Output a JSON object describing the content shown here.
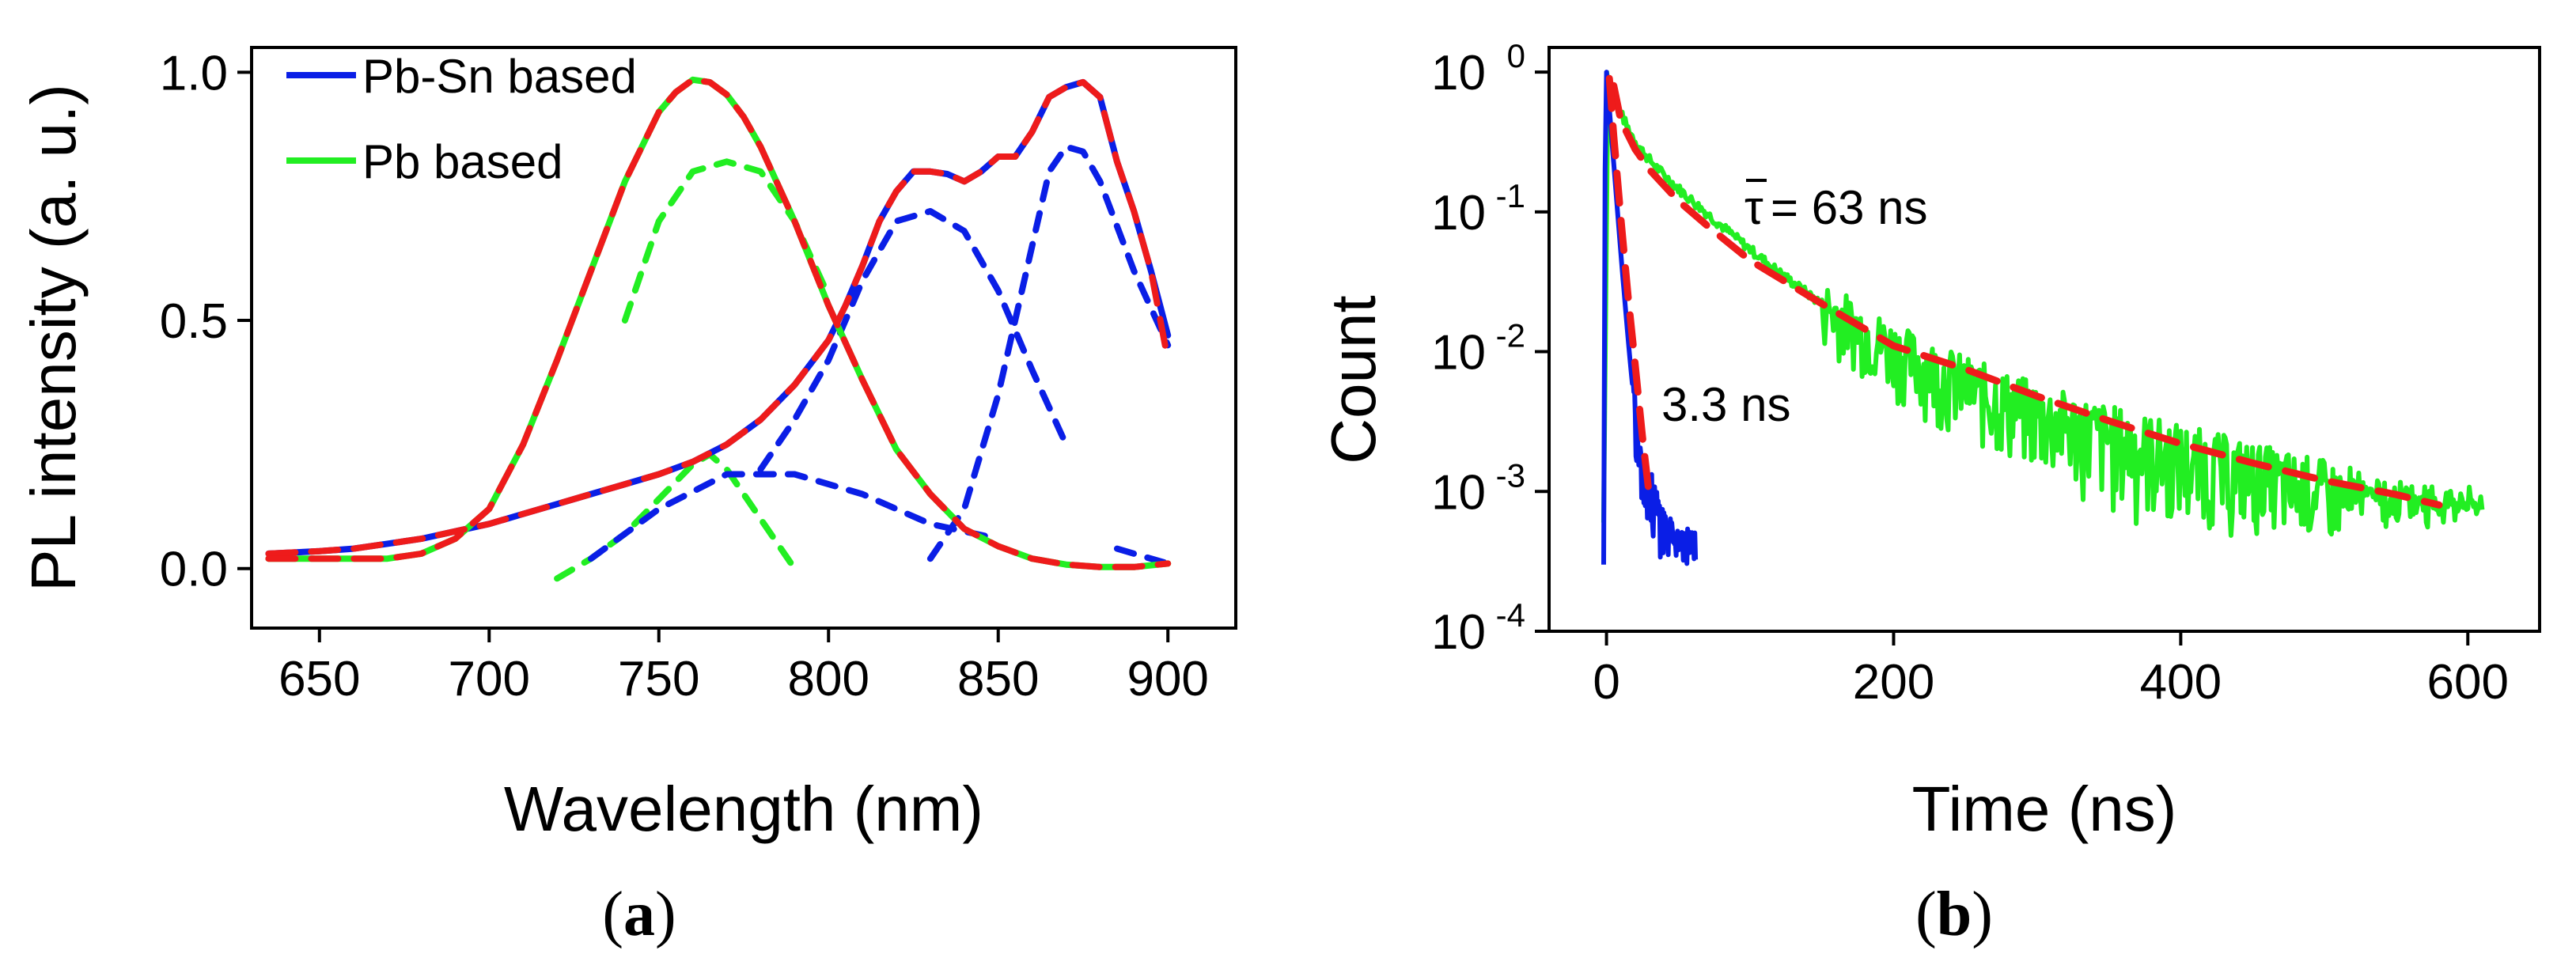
{
  "colors": {
    "pb_sn": "#0a1ee6",
    "pb": "#22ee22",
    "fit": "#ee1b1b",
    "axis": "#000000"
  },
  "chart_data": [
    {
      "type": "line",
      "panel_label": "a",
      "xlabel": "Wavelength (nm)",
      "ylabel": "PL intensity (a. u.)",
      "xlim": [
        630,
        920
      ],
      "ylim": [
        -0.12,
        1.05
      ],
      "xticks": [
        650,
        700,
        750,
        800,
        850,
        900
      ],
      "xtick_labels": [
        "650",
        "700",
        "750",
        "800",
        "850",
        "900"
      ],
      "yticks": [
        0.0,
        0.5,
        1.0
      ],
      "ytick_labels": [
        "0.0",
        "0.5",
        "1.0"
      ],
      "legend": [
        {
          "label": "Pb-Sn based",
          "color": "#0a1ee6"
        },
        {
          "label": "Pb based",
          "color": "#22ee22"
        }
      ],
      "series": [
        {
          "name": "Pb-Sn based",
          "style": "solid",
          "x": [
            635,
            650,
            660,
            670,
            680,
            690,
            700,
            710,
            720,
            730,
            740,
            750,
            760,
            770,
            780,
            790,
            800,
            805,
            810,
            815,
            820,
            825,
            830,
            835,
            840,
            845,
            850,
            855,
            860,
            865,
            870,
            875,
            880,
            885,
            890,
            895,
            900
          ],
          "y": [
            0.03,
            0.035,
            0.04,
            0.05,
            0.06,
            0.075,
            0.09,
            0.11,
            0.13,
            0.15,
            0.17,
            0.19,
            0.215,
            0.25,
            0.3,
            0.37,
            0.46,
            0.53,
            0.61,
            0.7,
            0.76,
            0.8,
            0.8,
            0.795,
            0.78,
            0.8,
            0.83,
            0.83,
            0.88,
            0.95,
            0.97,
            0.98,
            0.95,
            0.82,
            0.72,
            0.6,
            0.47
          ]
        },
        {
          "name": "Pb based",
          "style": "solid",
          "x": [
            635,
            650,
            660,
            670,
            680,
            690,
            700,
            710,
            720,
            730,
            740,
            750,
            755,
            760,
            765,
            770,
            775,
            780,
            790,
            800,
            810,
            820,
            830,
            840,
            850,
            860,
            870,
            880,
            890,
            900
          ],
          "y": [
            0.02,
            0.02,
            0.02,
            0.02,
            0.03,
            0.06,
            0.12,
            0.25,
            0.42,
            0.6,
            0.78,
            0.92,
            0.96,
            0.985,
            0.98,
            0.955,
            0.91,
            0.85,
            0.7,
            0.53,
            0.38,
            0.24,
            0.15,
            0.08,
            0.045,
            0.02,
            0.008,
            0.003,
            0.003,
            0.01
          ]
        },
        {
          "name": "Pb fit peak 1",
          "style": "dashed",
          "color": "#22ee22",
          "x": [
            720,
            730,
            740,
            750,
            760,
            765,
            770,
            780,
            790
          ],
          "y": [
            -0.02,
            0.02,
            0.07,
            0.14,
            0.21,
            0.23,
            0.2,
            0.1,
            0.0
          ]
        },
        {
          "name": "Pb fit peak 2",
          "style": "dashed",
          "color": "#22ee22",
          "x": [
            740,
            750,
            760,
            770,
            780,
            790,
            800
          ],
          "y": [
            0.5,
            0.7,
            0.8,
            0.82,
            0.8,
            0.7,
            0.55
          ]
        },
        {
          "name": "Pb-Sn fit peak 1",
          "style": "dashed",
          "color": "#0a1ee6",
          "x": [
            730,
            750,
            770,
            790,
            810,
            830,
            850
          ],
          "y": [
            0.02,
            0.12,
            0.19,
            0.19,
            0.15,
            0.09,
            0.06
          ]
        },
        {
          "name": "Pb-Sn fit peak 2",
          "style": "dashed",
          "color": "#0a1ee6",
          "x": [
            780,
            790,
            800,
            810,
            820,
            830,
            840,
            850,
            860,
            870
          ],
          "y": [
            0.2,
            0.3,
            0.42,
            0.58,
            0.7,
            0.72,
            0.68,
            0.56,
            0.4,
            0.25
          ]
        },
        {
          "name": "Pb-Sn fit peak 3",
          "style": "dashed",
          "color": "#0a1ee6",
          "x": [
            830,
            840,
            850,
            860,
            865,
            870,
            875,
            880,
            890,
            900
          ],
          "y": [
            0.02,
            0.12,
            0.35,
            0.65,
            0.8,
            0.85,
            0.84,
            0.78,
            0.6,
            0.45
          ]
        },
        {
          "name": "Pb fit residual peak",
          "style": "dashed",
          "color": "#0a1ee6",
          "x": [
            885,
            890,
            900
          ],
          "y": [
            0.04,
            0.03,
            0.01
          ]
        },
        {
          "name": "Pb-Sn fit",
          "style": "dashed",
          "color": "#ee1b1b",
          "x": [
            635,
            650,
            660,
            670,
            680,
            690,
            700,
            710,
            720,
            730,
            740,
            750,
            760,
            770,
            780,
            790,
            800,
            805,
            810,
            815,
            820,
            825,
            830,
            835,
            840,
            845,
            850,
            855,
            860,
            865,
            870,
            875,
            880,
            885,
            890,
            895,
            900
          ],
          "y": [
            0.03,
            0.035,
            0.04,
            0.05,
            0.06,
            0.075,
            0.09,
            0.11,
            0.13,
            0.15,
            0.17,
            0.19,
            0.215,
            0.25,
            0.3,
            0.37,
            0.46,
            0.53,
            0.61,
            0.7,
            0.76,
            0.8,
            0.8,
            0.795,
            0.78,
            0.8,
            0.83,
            0.83,
            0.88,
            0.95,
            0.97,
            0.98,
            0.95,
            0.82,
            0.72,
            0.6,
            0.42
          ]
        },
        {
          "name": "Pb fit",
          "style": "dashed",
          "color": "#ee1b1b",
          "x": [
            635,
            650,
            660,
            670,
            680,
            690,
            700,
            710,
            720,
            730,
            740,
            750,
            755,
            760,
            765,
            770,
            775,
            780,
            790,
            800,
            810,
            820,
            830,
            840,
            850,
            860,
            870,
            880,
            890,
            900
          ],
          "y": [
            0.02,
            0.02,
            0.02,
            0.02,
            0.03,
            0.06,
            0.12,
            0.25,
            0.42,
            0.6,
            0.78,
            0.92,
            0.96,
            0.985,
            0.98,
            0.955,
            0.91,
            0.85,
            0.7,
            0.53,
            0.38,
            0.24,
            0.15,
            0.08,
            0.045,
            0.02,
            0.008,
            0.003,
            0.003,
            0.01
          ]
        }
      ]
    },
    {
      "type": "line",
      "panel_label": "b",
      "xlabel": "Time (ns)",
      "ylabel": "Count",
      "yscale": "log",
      "xlim": [
        -40,
        650
      ],
      "ylim": [
        0.0001,
        1.5
      ],
      "xticks": [
        0,
        200,
        400,
        600
      ],
      "xtick_labels": [
        "0",
        "200",
        "400",
        "600"
      ],
      "yticks": [
        0.0001,
        0.001,
        0.01,
        0.1,
        1
      ],
      "ytick_labels": [
        {
          "base": "10",
          "exp": "-4"
        },
        {
          "base": "10",
          "exp": "-3"
        },
        {
          "base": "10",
          "exp": "-2"
        },
        {
          "base": "10",
          "exp": "-1"
        },
        {
          "base": "10",
          "exp": "0"
        }
      ],
      "annotations": [
        {
          "text": "τ",
          "overbar": true,
          "suffix": "= 63 ns"
        },
        {
          "text": "3.3 ns"
        }
      ],
      "series": [
        {
          "name": "Pb based decay",
          "color": "#22ee22",
          "decay_tau": 63,
          "x_start": 0,
          "x_end": 610,
          "noise_floor": 0.0006
        },
        {
          "name": "Pb-Sn based decay",
          "color": "#0a1ee6",
          "decay_tau": 3.3,
          "x_start": 0,
          "x_end": 62,
          "noise_floor": 0.0003
        },
        {
          "name": "Pb fit",
          "color": "#ee1b1b",
          "style": "dashed",
          "x": [
            5,
            10,
            20,
            30,
            50,
            70,
            100,
            150,
            200,
            250,
            300,
            350,
            400,
            450,
            500,
            550,
            580
          ],
          "y": [
            0.8,
            0.45,
            0.28,
            0.2,
            0.12,
            0.08,
            0.045,
            0.022,
            0.011,
            0.0075,
            0.0048,
            0.0032,
            0.0022,
            0.0016,
            0.0012,
            0.00095,
            0.0008
          ]
        },
        {
          "name": "Pb-Sn fit",
          "color": "#ee1b1b",
          "style": "dashed",
          "x": [
            2,
            5,
            10,
            15,
            20,
            25,
            30
          ],
          "y": [
            0.9,
            0.35,
            0.09,
            0.025,
            0.008,
            0.0025,
            0.0009
          ]
        }
      ]
    }
  ],
  "captions": {
    "a": "a",
    "b": "b"
  }
}
